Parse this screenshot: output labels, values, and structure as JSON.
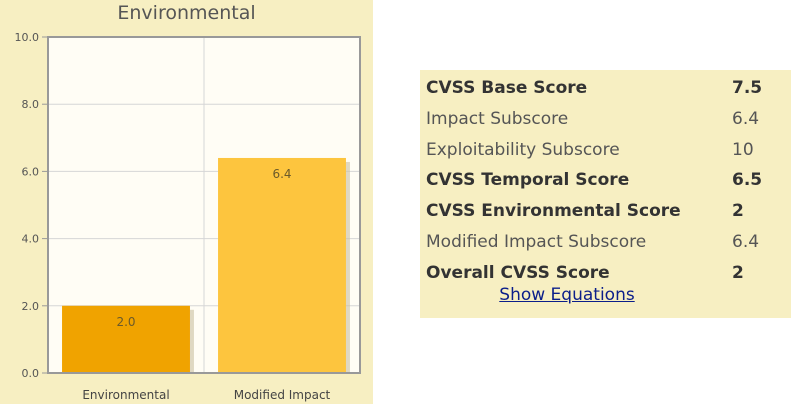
{
  "chart_data": {
    "type": "bar",
    "title": "Environmental",
    "categories": [
      "Environmental",
      "Modified Impact"
    ],
    "values": [
      2.0,
      6.4
    ],
    "value_labels": [
      "2.0",
      "6.4"
    ],
    "ylim": [
      0,
      10
    ],
    "yticks": [
      "0.0",
      "2.0",
      "4.0",
      "6.0",
      "8.0",
      "10.0"
    ],
    "grid": true,
    "colors": [
      "#f0a300",
      "#fdc53e"
    ]
  },
  "scores": [
    {
      "label": "CVSS Base Score",
      "value": "7.5",
      "bold": true
    },
    {
      "label": "Impact Subscore",
      "value": "6.4",
      "bold": false
    },
    {
      "label": "Exploitability Subscore",
      "value": "10",
      "bold": false
    },
    {
      "label": "CVSS Temporal Score",
      "value": "6.5",
      "bold": true
    },
    {
      "label": "CVSS Environmental Score",
      "value": "2",
      "bold": true
    },
    {
      "label": "Modified Impact Subscore",
      "value": "6.4",
      "bold": false
    },
    {
      "label": "Overall CVSS Score",
      "value": "2",
      "bold": true
    }
  ],
  "show_equations_label": "Show Equations"
}
